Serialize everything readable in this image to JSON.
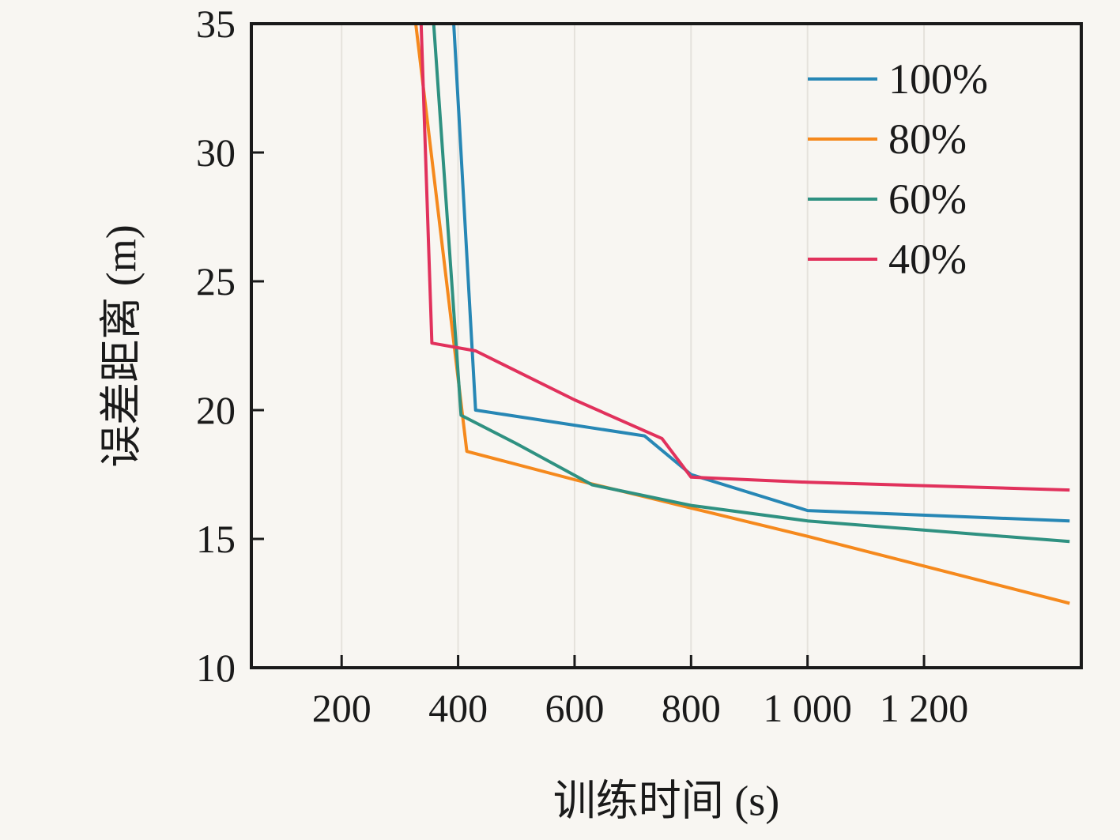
{
  "chart_data": {
    "type": "line",
    "title": "",
    "xlabel": "训练时间 (s)",
    "ylabel": "误差距离 (m)",
    "xlim": [
      45,
      1470
    ],
    "ylim": [
      10,
      35
    ],
    "x_ticks": [
      200,
      400,
      600,
      800,
      1000,
      1200
    ],
    "x_tick_labels": [
      "200",
      "400",
      "600",
      "800",
      "1 000",
      "1 200"
    ],
    "y_ticks": [
      10,
      15,
      20,
      25,
      30,
      35
    ],
    "y_tick_labels": [
      "10",
      "15",
      "20",
      "25",
      "30",
      "35"
    ],
    "grid": "vertical-only",
    "legend_position": "top-right",
    "background_color": "#f8f6f2",
    "axis_color": "#1a1a1a",
    "grid_color": "#e5e2dc",
    "series": [
      {
        "name": "100%",
        "color": "#2787b5",
        "points": [
          [
            390,
            36
          ],
          [
            430,
            20.0
          ],
          [
            720,
            19.0
          ],
          [
            800,
            17.5
          ],
          [
            1000,
            16.1
          ],
          [
            1450,
            15.7
          ]
        ]
      },
      {
        "name": "80%",
        "color": "#f5891d",
        "points": [
          [
            322,
            36
          ],
          [
            415,
            18.4
          ],
          [
            600,
            17.3
          ],
          [
            800,
            16.2
          ],
          [
            1000,
            15.1
          ],
          [
            1450,
            12.5
          ]
        ]
      },
      {
        "name": "60%",
        "color": "#2f9181",
        "points": [
          [
            355,
            36
          ],
          [
            405,
            19.8
          ],
          [
            500,
            18.7
          ],
          [
            630,
            17.1
          ],
          [
            800,
            16.3
          ],
          [
            1000,
            15.7
          ],
          [
            1450,
            14.9
          ]
        ]
      },
      {
        "name": "40%",
        "color": "#e1315c",
        "points": [
          [
            335,
            36
          ],
          [
            355,
            22.6
          ],
          [
            430,
            22.3
          ],
          [
            600,
            20.4
          ],
          [
            750,
            18.9
          ],
          [
            800,
            17.4
          ],
          [
            1000,
            17.2
          ],
          [
            1450,
            16.9
          ]
        ]
      }
    ]
  }
}
